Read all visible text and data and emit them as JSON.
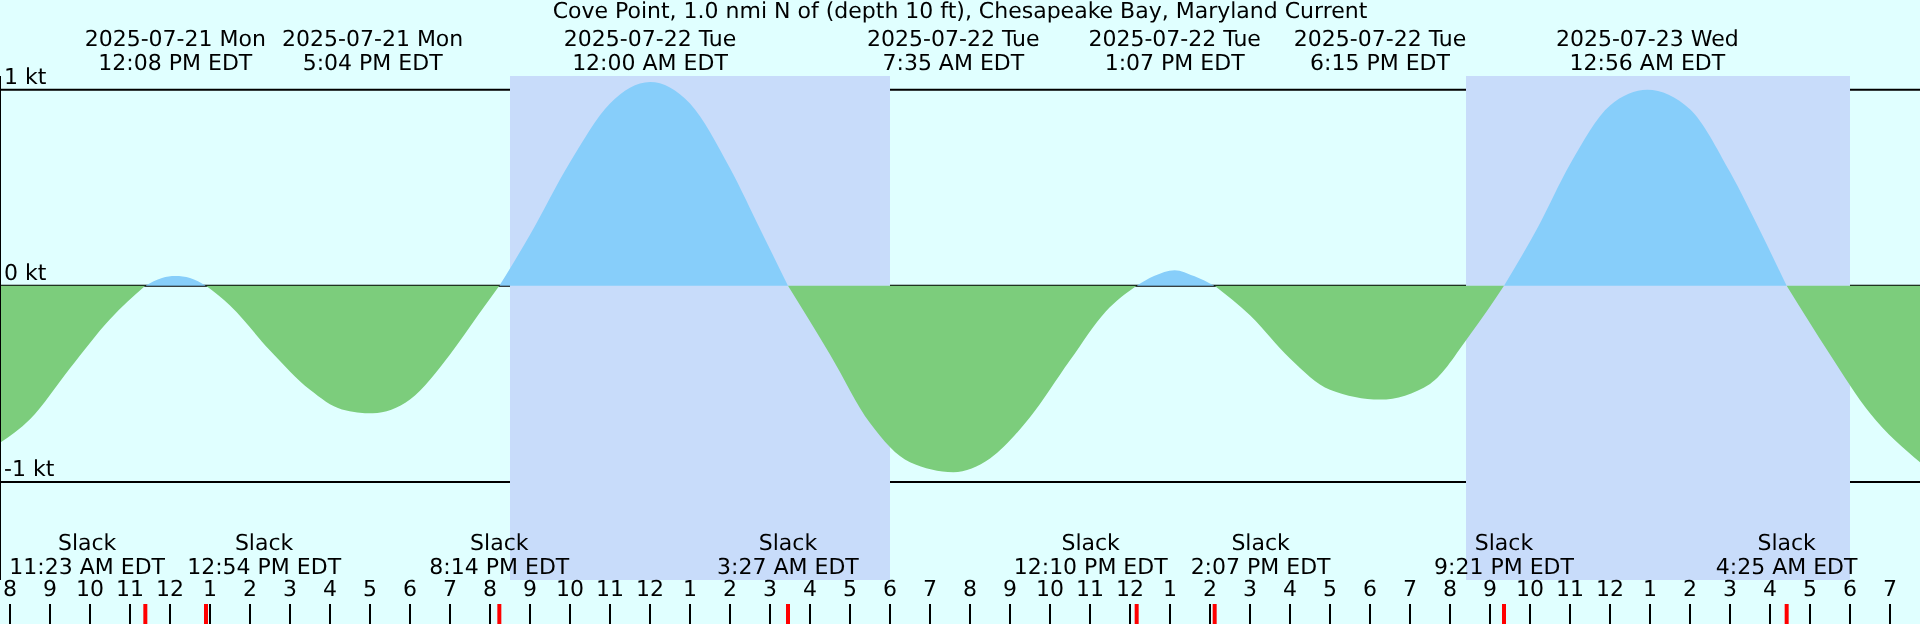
{
  "chart_data": {
    "type": "area",
    "title": "Cove Point, 1.0 nmi N of (depth 10 ft), Chesapeake Bay, Maryland Current",
    "xlim": [
      "2025-07-21T07:45",
      "2025-07-23T07:45"
    ],
    "xticks": [
      {
        "value": "2025-07-21T08:00",
        "label": "8"
      },
      {
        "value": "2025-07-21T09:00",
        "label": "9"
      },
      {
        "value": "2025-07-21T10:00",
        "label": "10"
      },
      {
        "value": "2025-07-21T11:00",
        "label": "11"
      },
      {
        "value": "2025-07-21T12:00",
        "label": "12"
      },
      {
        "value": "2025-07-21T13:00",
        "label": "1"
      },
      {
        "value": "2025-07-21T14:00",
        "label": "2"
      },
      {
        "value": "2025-07-21T15:00",
        "label": "3"
      },
      {
        "value": "2025-07-21T16:00",
        "label": "4"
      },
      {
        "value": "2025-07-21T17:00",
        "label": "5"
      },
      {
        "value": "2025-07-21T18:00",
        "label": "6"
      },
      {
        "value": "2025-07-21T19:00",
        "label": "7"
      },
      {
        "value": "2025-07-21T20:00",
        "label": "8"
      },
      {
        "value": "2025-07-21T21:00",
        "label": "9"
      },
      {
        "value": "2025-07-21T22:00",
        "label": "10"
      },
      {
        "value": "2025-07-21T23:00",
        "label": "11"
      },
      {
        "value": "2025-07-22T00:00",
        "label": "12"
      },
      {
        "value": "2025-07-22T01:00",
        "label": "1"
      },
      {
        "value": "2025-07-22T02:00",
        "label": "2"
      },
      {
        "value": "2025-07-22T03:00",
        "label": "3"
      },
      {
        "value": "2025-07-22T04:00",
        "label": "4"
      },
      {
        "value": "2025-07-22T05:00",
        "label": "5"
      },
      {
        "value": "2025-07-22T06:00",
        "label": "6"
      },
      {
        "value": "2025-07-22T07:00",
        "label": "7"
      },
      {
        "value": "2025-07-22T08:00",
        "label": "8"
      },
      {
        "value": "2025-07-22T09:00",
        "label": "9"
      },
      {
        "value": "2025-07-22T10:00",
        "label": "10"
      },
      {
        "value": "2025-07-22T11:00",
        "label": "11"
      },
      {
        "value": "2025-07-22T12:00",
        "label": "12"
      },
      {
        "value": "2025-07-22T13:00",
        "label": "1"
      },
      {
        "value": "2025-07-22T14:00",
        "label": "2"
      },
      {
        "value": "2025-07-22T15:00",
        "label": "3"
      },
      {
        "value": "2025-07-22T16:00",
        "label": "4"
      },
      {
        "value": "2025-07-22T17:00",
        "label": "5"
      },
      {
        "value": "2025-07-22T18:00",
        "label": "6"
      },
      {
        "value": "2025-07-22T19:00",
        "label": "7"
      },
      {
        "value": "2025-07-22T20:00",
        "label": "8"
      },
      {
        "value": "2025-07-22T21:00",
        "label": "9"
      },
      {
        "value": "2025-07-22T22:00",
        "label": "10"
      },
      {
        "value": "2025-07-22T23:00",
        "label": "11"
      },
      {
        "value": "2025-07-23T00:00",
        "label": "12"
      },
      {
        "value": "2025-07-23T01:00",
        "label": "1"
      },
      {
        "value": "2025-07-23T02:00",
        "label": "2"
      },
      {
        "value": "2025-07-23T03:00",
        "label": "3"
      },
      {
        "value": "2025-07-23T04:00",
        "label": "4"
      },
      {
        "value": "2025-07-23T05:00",
        "label": "5"
      },
      {
        "value": "2025-07-23T06:00",
        "label": "6"
      },
      {
        "value": "2025-07-23T07:00",
        "label": "7"
      }
    ],
    "x2lim": [
      "2025-07-21T07:45",
      "2025-07-23T07:45"
    ],
    "x2ticks": [
      {
        "value": "2025-07-21T12:08",
        "label": "2025-07-21 Mon\n12:08 PM EDT"
      },
      {
        "value": "2025-07-21T17:04",
        "label": "2025-07-21 Mon\n5:04 PM EDT"
      },
      {
        "value": "2025-07-22T00:00",
        "label": "2025-07-22 Tue\n12:00 AM EDT"
      },
      {
        "value": "2025-07-22T07:35",
        "label": "2025-07-22 Tue\n7:35 AM EDT"
      },
      {
        "value": "2025-07-22T13:07",
        "label": "2025-07-22 Tue\n1:07 PM EDT"
      },
      {
        "value": "2025-07-22T18:15",
        "label": "2025-07-22 Tue\n6:15 PM EDT"
      },
      {
        "value": "2025-07-23T00:56",
        "label": "2025-07-23 Wed\n12:56 AM EDT"
      }
    ],
    "ylim": [
      -1.5,
      1.07
    ],
    "yticks": [
      {
        "value": -1,
        "label": "-1 kt"
      },
      {
        "value": 0,
        "label": "0 kt"
      },
      {
        "value": 1,
        "label": "1 kt"
      }
    ],
    "grid": "y",
    "series": [
      {
        "color": "#87cefa",
        "x": [
          "2025-07-21T11:23",
          "2025-07-21T11:48",
          "2025-07-21T12:08",
          "2025-07-21T12:30",
          "2025-07-21T12:54",
          "2025-07-21T20:14",
          "2025-07-21T21:00",
          "2025-07-21T22:00",
          "2025-07-21T23:00",
          "2025-07-22T00:00",
          "2025-07-22T01:00",
          "2025-07-22T02:00",
          "2025-07-22T02:48",
          "2025-07-22T03:27",
          "2025-07-22T12:10",
          "2025-07-22T12:36",
          "2025-07-22T13:07",
          "2025-07-22T13:36",
          "2025-07-22T14:07",
          "2025-07-22T21:21",
          "2025-07-22T22:12",
          "2025-07-22T23:00",
          "2025-07-23T00:00",
          "2025-07-23T00:56",
          "2025-07-23T02:00",
          "2025-07-23T03:00",
          "2025-07-23T03:48",
          "2025-07-23T04:25"
        ],
        "values": [
          0,
          0.04,
          0.05,
          0.04,
          0,
          0,
          0.26,
          0.63,
          0.93,
          1.04,
          0.93,
          0.6,
          0.27,
          0,
          0,
          0.05,
          0.08,
          0.05,
          0,
          0,
          0.3,
          0.62,
          0.92,
          1.0,
          0.9,
          0.58,
          0.26,
          0
        ]
      },
      {
        "color": "#7ccd7c",
        "x": [
          "2025-07-21T07:45",
          "2025-07-21T08:30",
          "2025-07-21T09:30",
          "2025-07-21T10:30",
          "2025-07-21T11:23",
          "2025-07-21T12:54",
          "2025-07-21T13:30",
          "2025-07-21T14:30",
          "2025-07-21T15:30",
          "2025-07-21T16:18",
          "2025-07-21T17:04",
          "2025-07-21T18:00",
          "2025-07-21T19:00",
          "2025-07-21T19:42",
          "2025-07-21T20:14",
          "2025-07-22T03:27",
          "2025-07-22T04:30",
          "2025-07-22T05:30",
          "2025-07-22T06:30",
          "2025-07-22T07:35",
          "2025-07-22T08:30",
          "2025-07-22T09:30",
          "2025-07-22T10:30",
          "2025-07-22T11:24",
          "2025-07-22T12:10",
          "2025-07-22T14:07",
          "2025-07-22T15:00",
          "2025-07-22T16:00",
          "2025-07-22T17:00",
          "2025-07-22T18:15",
          "2025-07-22T19:30",
          "2025-07-22T20:30",
          "2025-07-22T21:21",
          "2025-07-23T04:25",
          "2025-07-23T05:30",
          "2025-07-23T06:30",
          "2025-07-23T07:45"
        ],
        "values": [
          -0.8,
          -0.68,
          -0.42,
          -0.17,
          0,
          0,
          -0.1,
          -0.33,
          -0.53,
          -0.63,
          -0.65,
          -0.58,
          -0.35,
          -0.15,
          0,
          0,
          -0.35,
          -0.7,
          -0.9,
          -0.95,
          -0.88,
          -0.67,
          -0.38,
          -0.13,
          0,
          0,
          -0.15,
          -0.37,
          -0.53,
          -0.58,
          -0.5,
          -0.25,
          0,
          0,
          -0.35,
          -0.65,
          -0.9
        ]
      }
    ],
    "bands": [
      {
        "axis": "x",
        "from": "2025-07-21T20:30",
        "to": "2025-07-22T06:00",
        "color": "#c8dcfa"
      },
      {
        "axis": "x",
        "from": "2025-07-22T20:24",
        "to": "2025-07-23T06:00",
        "color": "#c8dcfa"
      }
    ],
    "ref_lines": [
      {
        "axis": "x",
        "value": "2025-07-21T11:23",
        "label": "Slack\n11:23 AM EDT",
        "color": "#ff0000"
      },
      {
        "axis": "x",
        "value": "2025-07-21T12:54",
        "label": "Slack\n12:54 PM EDT",
        "color": "#ff0000"
      },
      {
        "axis": "x",
        "value": "2025-07-21T20:14",
        "label": "Slack\n8:14 PM EDT",
        "color": "#ff0000"
      },
      {
        "axis": "x",
        "value": "2025-07-22T03:27",
        "label": "Slack\n3:27 AM EDT",
        "color": "#ff0000"
      },
      {
        "axis": "x",
        "value": "2025-07-22T12:10",
        "label": "Slack\n12:10 PM EDT",
        "color": "#ff0000"
      },
      {
        "axis": "x",
        "value": "2025-07-22T14:07",
        "label": "Slack\n2:07 PM EDT",
        "color": "#ff0000"
      },
      {
        "axis": "x",
        "value": "2025-07-22T21:21",
        "label": "Slack\n9:21 PM EDT",
        "color": "#ff0000"
      },
      {
        "axis": "x",
        "value": "2025-07-23T04:25",
        "label": "Slack\n4:25 AM EDT",
        "color": "#ff0000"
      }
    ]
  }
}
